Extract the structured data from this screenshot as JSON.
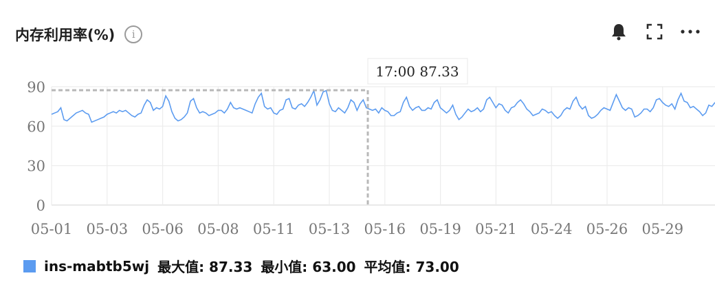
{
  "title": "内存利用率(%)",
  "icons": {
    "info": "info-icon",
    "alarm": "bell-icon",
    "fullscreen": "fullscreen-icon",
    "more": "more-icon"
  },
  "colors": {
    "series": "#5b9bf0",
    "grid": "#ececec",
    "crosshair": "#b8b8b8"
  },
  "tooltip": {
    "text": "17:00 87.33"
  },
  "legend": {
    "series_name": "ins-mabtb5wj",
    "max_text": "最大值: 87.33",
    "min_text": "最小值: 63.00",
    "avg_text": "平均值: 73.00"
  },
  "chart_data": {
    "type": "line",
    "x_tick_labels": [
      "05-01",
      "05-03",
      "05-06",
      "05-08",
      "05-11",
      "05-13",
      "05-16",
      "05-19",
      "05-21",
      "05-24",
      "05-26",
      "05-29"
    ],
    "y_tick_labels": [
      "0",
      "30",
      "60",
      "90"
    ],
    "ylim": [
      0,
      90
    ],
    "grid": true,
    "legend_position": "bottom-left",
    "crosshair_value": 87.33,
    "series": [
      {
        "name": "ins-mabtb5wj",
        "color": "#5b9bf0",
        "values": [
          69,
          70,
          71,
          74,
          65,
          64,
          66,
          68,
          70,
          71,
          72,
          70,
          69,
          63,
          64,
          65,
          66,
          67,
          69,
          70,
          71,
          70,
          72,
          71,
          72,
          70,
          68,
          67,
          69,
          70,
          76,
          80,
          78,
          72,
          74,
          73,
          75,
          83,
          79,
          71,
          66,
          64,
          65,
          67,
          70,
          79,
          81,
          74,
          70,
          71,
          70,
          68,
          69,
          70,
          72,
          72,
          70,
          73,
          78,
          74,
          73,
          74,
          73,
          72,
          71,
          70,
          77,
          82,
          85,
          75,
          73,
          74,
          70,
          69,
          72,
          73,
          80,
          81,
          74,
          73,
          76,
          77,
          75,
          78,
          82,
          87,
          76,
          80,
          86,
          87,
          77,
          72,
          71,
          74,
          72,
          70,
          74,
          80,
          78,
          72,
          77,
          80,
          74,
          73,
          72,
          73,
          70,
          74,
          72,
          71,
          68,
          68,
          70,
          71,
          78,
          82,
          75,
          72,
          74,
          75,
          72,
          72,
          74,
          73,
          78,
          80,
          74,
          72,
          70,
          72,
          76,
          69,
          65,
          67,
          70,
          73,
          71,
          72,
          74,
          71,
          73,
          80,
          82,
          78,
          74,
          77,
          76,
          72,
          70,
          74,
          75,
          78,
          80,
          77,
          73,
          71,
          68,
          69,
          70,
          73,
          72,
          70,
          71,
          68,
          66,
          68,
          72,
          74,
          73,
          79,
          82,
          76,
          73,
          75,
          68,
          66,
          67,
          69,
          72,
          74,
          73,
          72,
          78,
          84,
          79,
          74,
          72,
          74,
          73,
          67,
          68,
          70,
          73,
          73,
          71,
          74,
          80,
          81,
          78,
          76,
          75,
          77,
          73,
          80,
          85,
          79,
          78,
          74,
          75,
          73,
          71,
          68,
          70,
          76,
          75,
          78
        ]
      }
    ]
  }
}
